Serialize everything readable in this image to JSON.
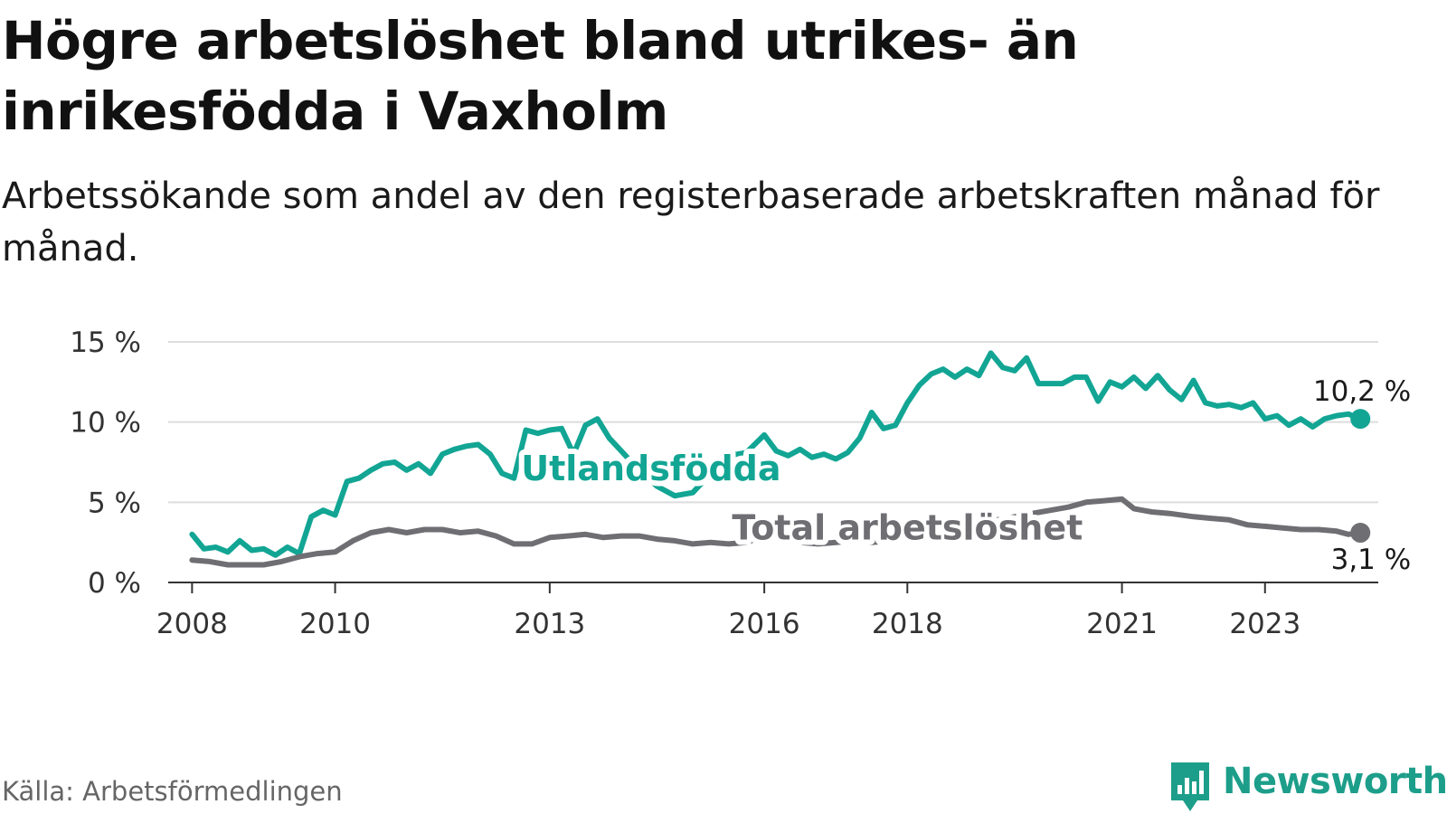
{
  "title": "Högre arbetslöshet bland utrikes- än inrikesfödda i Vaxholm",
  "subtitle": "Arbetssökande som andel av den registerbaserade arbetskraften månad för månad.",
  "source": "Källa: Arbetsförmedlingen",
  "brand": {
    "name": "Newsworthy",
    "logo_icon": "bar-chart-speech-bubble-icon"
  },
  "colors": {
    "foreign_born": "#12a594",
    "total": "#6e6e73",
    "grid": "#dddddd",
    "axis": "#333333",
    "brand": "#1d9e8a"
  },
  "chart_data": {
    "type": "line",
    "x_type": "date",
    "xlim": [
      "2007-09",
      "2024-08"
    ],
    "ylim": [
      0,
      15
    ],
    "y_ticks": [
      {
        "value": 0,
        "label": "0 %"
      },
      {
        "value": 5,
        "label": "5 %"
      },
      {
        "value": 10,
        "label": "10 %"
      },
      {
        "value": 15,
        "label": "15 %"
      }
    ],
    "x_ticks": [
      {
        "value": "2008-01",
        "label": "2008"
      },
      {
        "value": "2010-01",
        "label": "2010"
      },
      {
        "value": "2013-01",
        "label": "2013"
      },
      {
        "value": "2016-01",
        "label": "2016"
      },
      {
        "value": "2018-01",
        "label": "2018"
      },
      {
        "value": "2021-01",
        "label": "2021"
      },
      {
        "value": "2023-01",
        "label": "2023"
      }
    ],
    "grid": true,
    "legend": "none",
    "series": [
      {
        "name": "Utlandsfödda",
        "color": "#12a594",
        "label_at": [
          "2014-06",
          7.1
        ],
        "end_label": "10,2 %",
        "points": [
          [
            "2008-01",
            3.0
          ],
          [
            "2008-03",
            2.1
          ],
          [
            "2008-05",
            2.2
          ],
          [
            "2008-07",
            1.9
          ],
          [
            "2008-09",
            2.6
          ],
          [
            "2008-11",
            2.0
          ],
          [
            "2009-01",
            2.1
          ],
          [
            "2009-03",
            1.7
          ],
          [
            "2009-05",
            2.2
          ],
          [
            "2009-07",
            1.8
          ],
          [
            "2009-09",
            4.1
          ],
          [
            "2009-11",
            4.5
          ],
          [
            "2010-01",
            4.2
          ],
          [
            "2010-03",
            6.3
          ],
          [
            "2010-05",
            6.5
          ],
          [
            "2010-07",
            7.0
          ],
          [
            "2010-09",
            7.4
          ],
          [
            "2010-11",
            7.5
          ],
          [
            "2011-01",
            7.0
          ],
          [
            "2011-03",
            7.4
          ],
          [
            "2011-05",
            6.8
          ],
          [
            "2011-07",
            8.0
          ],
          [
            "2011-09",
            8.3
          ],
          [
            "2011-11",
            8.5
          ],
          [
            "2012-01",
            8.6
          ],
          [
            "2012-03",
            8.0
          ],
          [
            "2012-05",
            6.8
          ],
          [
            "2012-07",
            6.5
          ],
          [
            "2012-09",
            9.5
          ],
          [
            "2012-11",
            9.3
          ],
          [
            "2013-01",
            9.5
          ],
          [
            "2013-03",
            9.6
          ],
          [
            "2013-05",
            8.0
          ],
          [
            "2013-07",
            9.8
          ],
          [
            "2013-09",
            10.2
          ],
          [
            "2013-11",
            9.0
          ],
          [
            "2014-01",
            8.2
          ],
          [
            "2014-04",
            7.0
          ],
          [
            "2014-07",
            6.0
          ],
          [
            "2014-10",
            5.4
          ],
          [
            "2015-01",
            5.6
          ],
          [
            "2015-04",
            6.8
          ],
          [
            "2015-07",
            7.9
          ],
          [
            "2015-10",
            8.1
          ],
          [
            "2016-01",
            9.2
          ],
          [
            "2016-03",
            8.2
          ],
          [
            "2016-05",
            7.9
          ],
          [
            "2016-07",
            8.3
          ],
          [
            "2016-09",
            7.8
          ],
          [
            "2016-11",
            8.0
          ],
          [
            "2017-01",
            7.7
          ],
          [
            "2017-03",
            8.1
          ],
          [
            "2017-05",
            9.0
          ],
          [
            "2017-07",
            10.6
          ],
          [
            "2017-09",
            9.6
          ],
          [
            "2017-11",
            9.8
          ],
          [
            "2018-01",
            11.2
          ],
          [
            "2018-03",
            12.3
          ],
          [
            "2018-05",
            13.0
          ],
          [
            "2018-07",
            13.3
          ],
          [
            "2018-09",
            12.8
          ],
          [
            "2018-11",
            13.3
          ],
          [
            "2019-01",
            12.9
          ],
          [
            "2019-03",
            14.3
          ],
          [
            "2019-05",
            13.4
          ],
          [
            "2019-07",
            13.2
          ],
          [
            "2019-09",
            14.0
          ],
          [
            "2019-11",
            12.4
          ],
          [
            "2020-01",
            12.4
          ],
          [
            "2020-03",
            12.4
          ],
          [
            "2020-05",
            12.8
          ],
          [
            "2020-07",
            12.8
          ],
          [
            "2020-09",
            11.3
          ],
          [
            "2020-11",
            12.5
          ],
          [
            "2021-01",
            12.2
          ],
          [
            "2021-03",
            12.8
          ],
          [
            "2021-05",
            12.1
          ],
          [
            "2021-07",
            12.9
          ],
          [
            "2021-09",
            12.0
          ],
          [
            "2021-11",
            11.4
          ],
          [
            "2022-01",
            12.6
          ],
          [
            "2022-03",
            11.2
          ],
          [
            "2022-05",
            11.0
          ],
          [
            "2022-07",
            11.1
          ],
          [
            "2022-09",
            10.9
          ],
          [
            "2022-11",
            11.2
          ],
          [
            "2023-01",
            10.2
          ],
          [
            "2023-03",
            10.4
          ],
          [
            "2023-05",
            9.8
          ],
          [
            "2023-07",
            10.2
          ],
          [
            "2023-09",
            9.7
          ],
          [
            "2023-11",
            10.2
          ],
          [
            "2024-01",
            10.4
          ],
          [
            "2024-03",
            10.5
          ],
          [
            "2024-05",
            10.2
          ]
        ]
      },
      {
        "name": "Total arbetslöshet",
        "color": "#6e6e73",
        "label_at": [
          "2018-01",
          3.4
        ],
        "end_label": "3,1 %",
        "points": [
          [
            "2008-01",
            1.4
          ],
          [
            "2008-04",
            1.3
          ],
          [
            "2008-07",
            1.1
          ],
          [
            "2008-10",
            1.1
          ],
          [
            "2009-01",
            1.1
          ],
          [
            "2009-04",
            1.3
          ],
          [
            "2009-07",
            1.6
          ],
          [
            "2009-10",
            1.8
          ],
          [
            "2010-01",
            1.9
          ],
          [
            "2010-04",
            2.6
          ],
          [
            "2010-07",
            3.1
          ],
          [
            "2010-10",
            3.3
          ],
          [
            "2011-01",
            3.1
          ],
          [
            "2011-04",
            3.3
          ],
          [
            "2011-07",
            3.3
          ],
          [
            "2011-10",
            3.1
          ],
          [
            "2012-01",
            3.2
          ],
          [
            "2012-04",
            2.9
          ],
          [
            "2012-07",
            2.4
          ],
          [
            "2012-10",
            2.4
          ],
          [
            "2013-01",
            2.8
          ],
          [
            "2013-04",
            2.9
          ],
          [
            "2013-07",
            3.0
          ],
          [
            "2013-10",
            2.8
          ],
          [
            "2014-01",
            2.9
          ],
          [
            "2014-04",
            2.9
          ],
          [
            "2014-07",
            2.7
          ],
          [
            "2014-10",
            2.6
          ],
          [
            "2015-01",
            2.4
          ],
          [
            "2015-04",
            2.5
          ],
          [
            "2015-07",
            2.4
          ],
          [
            "2015-10",
            2.5
          ],
          [
            "2016-01",
            2.9
          ],
          [
            "2016-04",
            2.7
          ],
          [
            "2016-07",
            2.5
          ],
          [
            "2016-10",
            2.4
          ],
          [
            "2017-01",
            2.5
          ],
          [
            "2017-04",
            2.6
          ],
          [
            "2017-07",
            2.5
          ],
          [
            "2017-10",
            2.6
          ],
          [
            "2018-01",
            2.9
          ],
          [
            "2018-04",
            3.1
          ],
          [
            "2018-07",
            3.3
          ],
          [
            "2018-10",
            3.5
          ],
          [
            "2019-01",
            3.7
          ],
          [
            "2019-04",
            3.9
          ],
          [
            "2019-07",
            4.1
          ],
          [
            "2019-10",
            4.3
          ],
          [
            "2020-01",
            4.5
          ],
          [
            "2020-04",
            4.7
          ],
          [
            "2020-07",
            5.0
          ],
          [
            "2020-10",
            5.1
          ],
          [
            "2021-01",
            5.2
          ],
          [
            "2021-03",
            4.6
          ],
          [
            "2021-06",
            4.4
          ],
          [
            "2021-09",
            4.3
          ],
          [
            "2022-01",
            4.1
          ],
          [
            "2022-04",
            4.0
          ],
          [
            "2022-07",
            3.9
          ],
          [
            "2022-10",
            3.6
          ],
          [
            "2023-01",
            3.5
          ],
          [
            "2023-04",
            3.4
          ],
          [
            "2023-07",
            3.3
          ],
          [
            "2023-10",
            3.3
          ],
          [
            "2024-01",
            3.2
          ],
          [
            "2024-03",
            3.0
          ],
          [
            "2024-05",
            3.1
          ]
        ]
      }
    ]
  }
}
